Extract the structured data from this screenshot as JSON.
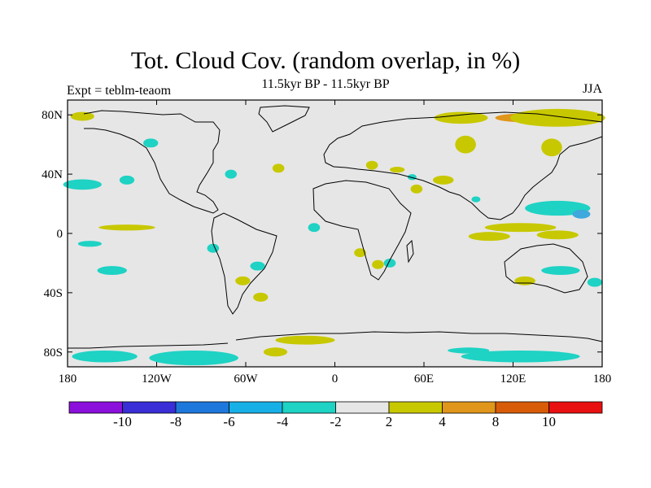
{
  "title": "Tot. Cloud Cov. (random overlap, in %)",
  "subtitle": "11.5kyr BP - 11.5kyr BP",
  "left_label": "Expt = teblm-teaom",
  "right_label": "JJA",
  "map": {
    "projection": "cylindrical-equidistant",
    "lon_range": [
      -180,
      180
    ],
    "lat_range": [
      -90,
      90
    ],
    "lat_ticks": [
      {
        "value": 80,
        "label": "80N"
      },
      {
        "value": 40,
        "label": "40N"
      },
      {
        "value": 0,
        "label": "0"
      },
      {
        "value": -40,
        "label": "40S"
      },
      {
        "value": -80,
        "label": "80S"
      }
    ],
    "lon_ticks": [
      {
        "value": -180,
        "label": "180"
      },
      {
        "value": -120,
        "label": "120W"
      },
      {
        "value": -60,
        "label": "60W"
      },
      {
        "value": 0,
        "label": "0"
      },
      {
        "value": 60,
        "label": "60E"
      },
      {
        "value": 120,
        "label": "120E"
      },
      {
        "value": 180,
        "label": "180"
      }
    ],
    "background_color": "#e6e6e6",
    "anomalies": [
      {
        "lon": 155,
        "lat": 79,
        "rx": 18,
        "ry": 4,
        "color": "#e0961a"
      },
      {
        "lon": 128,
        "lat": 78,
        "rx": 20,
        "ry": 3,
        "color": "#e0961a"
      },
      {
        "lon": 150,
        "lat": 78,
        "rx": 32,
        "ry": 6,
        "color": "#c8c800"
      },
      {
        "lon": 85,
        "lat": 78,
        "rx": 18,
        "ry": 4,
        "color": "#c8c800"
      },
      {
        "lon": 88,
        "lat": 60,
        "rx": 7,
        "ry": 6,
        "color": "#c8c800"
      },
      {
        "lon": 146,
        "lat": 58,
        "rx": 7,
        "ry": 6,
        "color": "#c8c800"
      },
      {
        "lon": -170,
        "lat": 79,
        "rx": 8,
        "ry": 3,
        "color": "#c8c800"
      },
      {
        "lon": -124,
        "lat": 61,
        "rx": 5,
        "ry": 3,
        "color": "#1ed2c4"
      },
      {
        "lon": -170,
        "lat": 33,
        "rx": 13,
        "ry": 3.5,
        "color": "#1ed2c4"
      },
      {
        "lon": -140,
        "lat": 36,
        "rx": 5,
        "ry": 3,
        "color": "#1ed2c4"
      },
      {
        "lon": -70,
        "lat": 40,
        "rx": 4,
        "ry": 3,
        "color": "#1ed2c4"
      },
      {
        "lon": -38,
        "lat": 44,
        "rx": 4,
        "ry": 3,
        "color": "#c8c800"
      },
      {
        "lon": -140,
        "lat": 4,
        "rx": 19,
        "ry": 2,
        "color": "#c8c800"
      },
      {
        "lon": -165,
        "lat": -7,
        "rx": 8,
        "ry": 2,
        "color": "#1ed2c4"
      },
      {
        "lon": -150,
        "lat": -25,
        "rx": 10,
        "ry": 3,
        "color": "#1ed2c4"
      },
      {
        "lon": -82,
        "lat": -10,
        "rx": 4,
        "ry": 3,
        "color": "#1ed2c4"
      },
      {
        "lon": -52,
        "lat": -22,
        "rx": 5,
        "ry": 3,
        "color": "#1ed2c4"
      },
      {
        "lon": -62,
        "lat": -32,
        "rx": 5,
        "ry": 3,
        "color": "#c8c800"
      },
      {
        "lon": -50,
        "lat": -43,
        "rx": 5,
        "ry": 3,
        "color": "#c8c800"
      },
      {
        "lon": -14,
        "lat": 4,
        "rx": 4,
        "ry": 3,
        "color": "#1ed2c4"
      },
      {
        "lon": 17,
        "lat": -13,
        "rx": 4,
        "ry": 3,
        "color": "#c8c800"
      },
      {
        "lon": 29,
        "lat": -21,
        "rx": 4,
        "ry": 3,
        "color": "#c8c800"
      },
      {
        "lon": 37,
        "lat": -20,
        "rx": 4,
        "ry": 3,
        "color": "#1ed2c4"
      },
      {
        "lon": 25,
        "lat": 46,
        "rx": 4,
        "ry": 3,
        "color": "#c8c800"
      },
      {
        "lon": 42,
        "lat": 43,
        "rx": 5,
        "ry": 2,
        "color": "#c8c800"
      },
      {
        "lon": 52,
        "lat": 38,
        "rx": 3,
        "ry": 2,
        "color": "#1ed2c4"
      },
      {
        "lon": 73,
        "lat": 36,
        "rx": 7,
        "ry": 3,
        "color": "#c8c800"
      },
      {
        "lon": 55,
        "lat": 30,
        "rx": 4,
        "ry": 3,
        "color": "#c8c800"
      },
      {
        "lon": 95,
        "lat": 23,
        "rx": 3,
        "ry": 2,
        "color": "#1ed2c4"
      },
      {
        "lon": 150,
        "lat": 17,
        "rx": 22,
        "ry": 5,
        "color": "#1ed2c4"
      },
      {
        "lon": 166,
        "lat": 13,
        "rx": 6,
        "ry": 3,
        "color": "#3fa8dc"
      },
      {
        "lon": 125,
        "lat": 4,
        "rx": 24,
        "ry": 3,
        "color": "#c8c800"
      },
      {
        "lon": 104,
        "lat": -2,
        "rx": 14,
        "ry": 3,
        "color": "#c8c800"
      },
      {
        "lon": 150,
        "lat": -1,
        "rx": 14,
        "ry": 3,
        "color": "#c8c800"
      },
      {
        "lon": 152,
        "lat": -25,
        "rx": 13,
        "ry": 3,
        "color": "#1ed2c4"
      },
      {
        "lon": 128,
        "lat": -32,
        "rx": 7,
        "ry": 3,
        "color": "#c8c800"
      },
      {
        "lon": 175,
        "lat": -33,
        "rx": 5,
        "ry": 3,
        "color": "#1ed2c4"
      },
      {
        "lon": -20,
        "lat": -72,
        "rx": 20,
        "ry": 3,
        "color": "#c8c800"
      },
      {
        "lon": -40,
        "lat": -80,
        "rx": 8,
        "ry": 3,
        "color": "#c8c800"
      },
      {
        "lon": -95,
        "lat": -84,
        "rx": 30,
        "ry": 5,
        "color": "#1ed2c4"
      },
      {
        "lon": -155,
        "lat": -83,
        "rx": 22,
        "ry": 4,
        "color": "#1ed2c4"
      },
      {
        "lon": 125,
        "lat": -83,
        "rx": 40,
        "ry": 4,
        "color": "#1ed2c4"
      },
      {
        "lon": 90,
        "lat": -79,
        "rx": 14,
        "ry": 2,
        "color": "#1ed2c4"
      }
    ]
  },
  "colorbar": {
    "colors": [
      "#8b10dc",
      "#3a2ed6",
      "#1e78dc",
      "#17b0e6",
      "#1ed2c4",
      "#e6e6e6",
      "#c8c800",
      "#e0961a",
      "#d85c08",
      "#e81010"
    ],
    "labels": [
      "-10",
      "-8",
      "-6",
      "-4",
      "-2",
      "2",
      "4",
      "8",
      "10"
    ]
  }
}
